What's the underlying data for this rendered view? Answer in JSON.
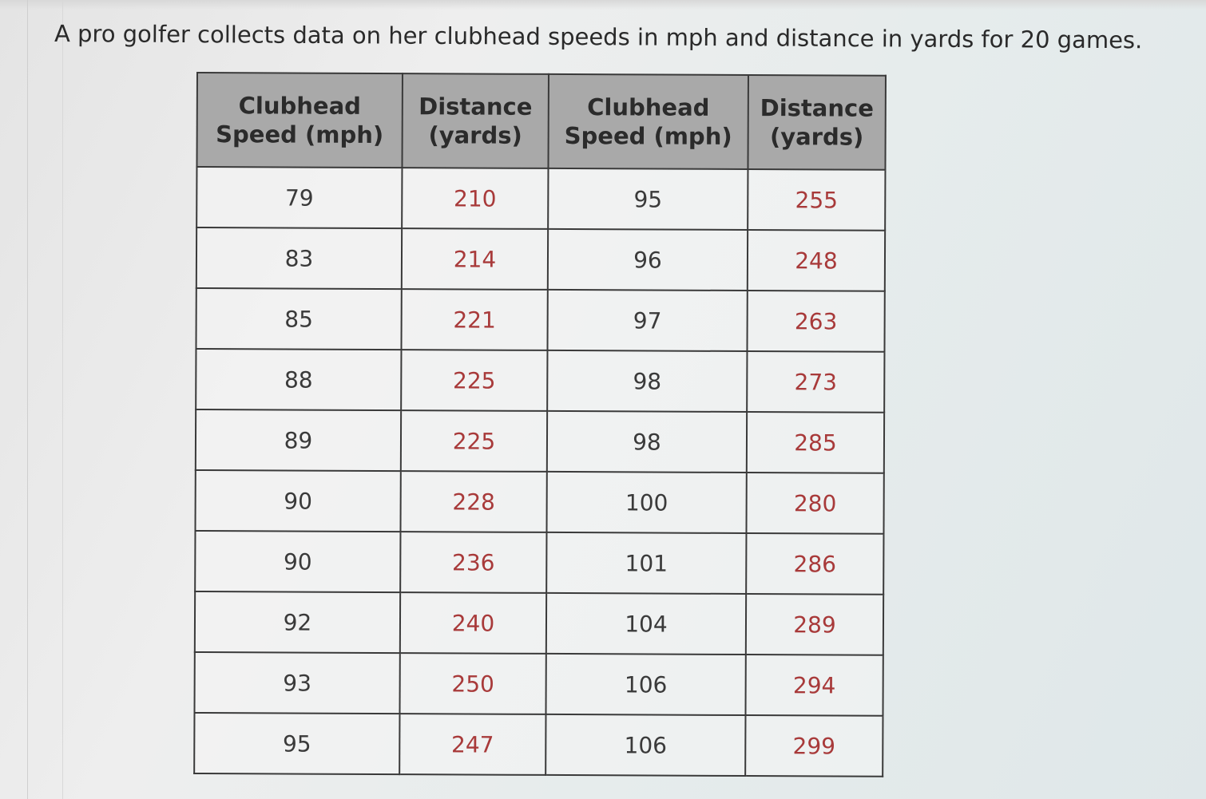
{
  "intro_text": "A pro golfer collects data on her clubhead speeds in mph and distance in yards for 20 games.",
  "table": {
    "headers": [
      {
        "line1": "Clubhead",
        "line2": "Speed (mph)"
      },
      {
        "line1": "Distance",
        "line2": "(yards)"
      },
      {
        "line1": "Clubhead",
        "line2": "Speed (mph)"
      },
      {
        "line1": "Distance",
        "line2": "(yards)"
      }
    ],
    "rows": [
      [
        "79",
        "210",
        "95",
        "255"
      ],
      [
        "83",
        "214",
        "96",
        "248"
      ],
      [
        "85",
        "221",
        "97",
        "263"
      ],
      [
        "88",
        "225",
        "98",
        "273"
      ],
      [
        "89",
        "225",
        "98",
        "285"
      ],
      [
        "90",
        "228",
        "100",
        "280"
      ],
      [
        "90",
        "236",
        "101",
        "286"
      ],
      [
        "92",
        "240",
        "104",
        "289"
      ],
      [
        "93",
        "250",
        "106",
        "294"
      ],
      [
        "95",
        "247",
        "106",
        "299"
      ]
    ]
  },
  "colors": {
    "header_background": "#a9a9a9",
    "speed_text": "#3a3a3a",
    "distance_text": "#a83a3a"
  }
}
